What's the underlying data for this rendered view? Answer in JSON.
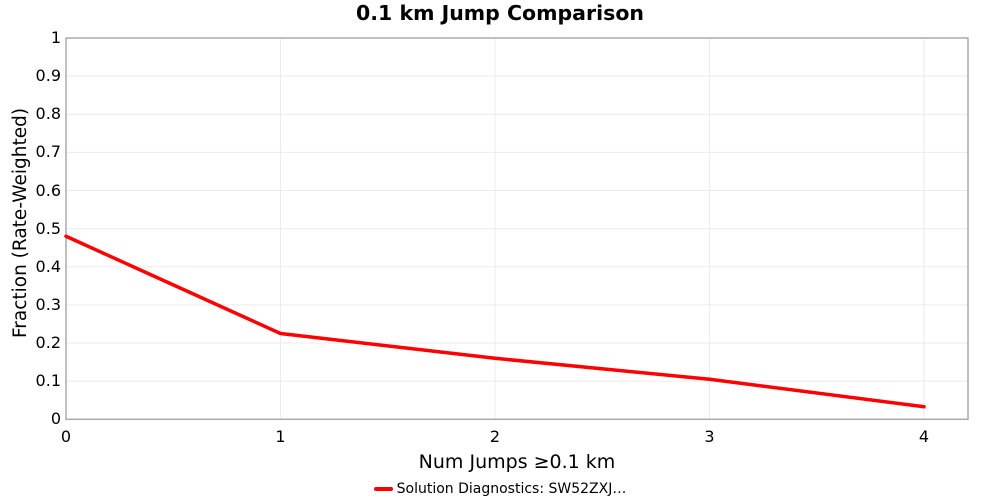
{
  "chart_data": {
    "type": "line",
    "title": "0.1 km Jump Comparison",
    "xlabel": "Num Jumps ≥0.1 km",
    "ylabel": "Fraction (Rate-Weighted)",
    "x": [
      0,
      1,
      2,
      3,
      4
    ],
    "values": [
      0.48,
      0.225,
      0.16,
      0.105,
      0.033
    ],
    "series_name": "Solution Diagnostics: SW52ZXJ…",
    "xticks": [
      "0",
      "1",
      "2",
      "3",
      "4"
    ],
    "yticks": [
      "0",
      "0.1",
      "0.2",
      "0.3",
      "0.4",
      "0.5",
      "0.6",
      "0.7",
      "0.8",
      "0.9",
      "1"
    ],
    "xlim": [
      0,
      4.205
    ],
    "ylim": [
      0,
      1
    ],
    "grid": true,
    "legend_position": "bottom",
    "line_color": "#ff0000",
    "grid_color": "#ebebeb",
    "border_color": "#aaaaaa"
  }
}
